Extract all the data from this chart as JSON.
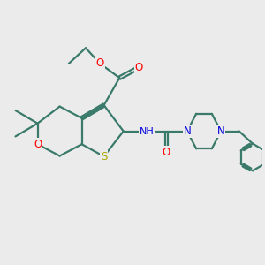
{
  "bg_color": "#ebebeb",
  "bond_color": "#3a7a6a",
  "bond_width": 1.6,
  "atom_colors": {
    "O": "#ff0000",
    "S": "#aaaa00",
    "N": "#0000dd",
    "H": "#888888"
  },
  "font_size": 8.5,
  "figsize": [
    3.0,
    3.0
  ],
  "dpi": 100
}
